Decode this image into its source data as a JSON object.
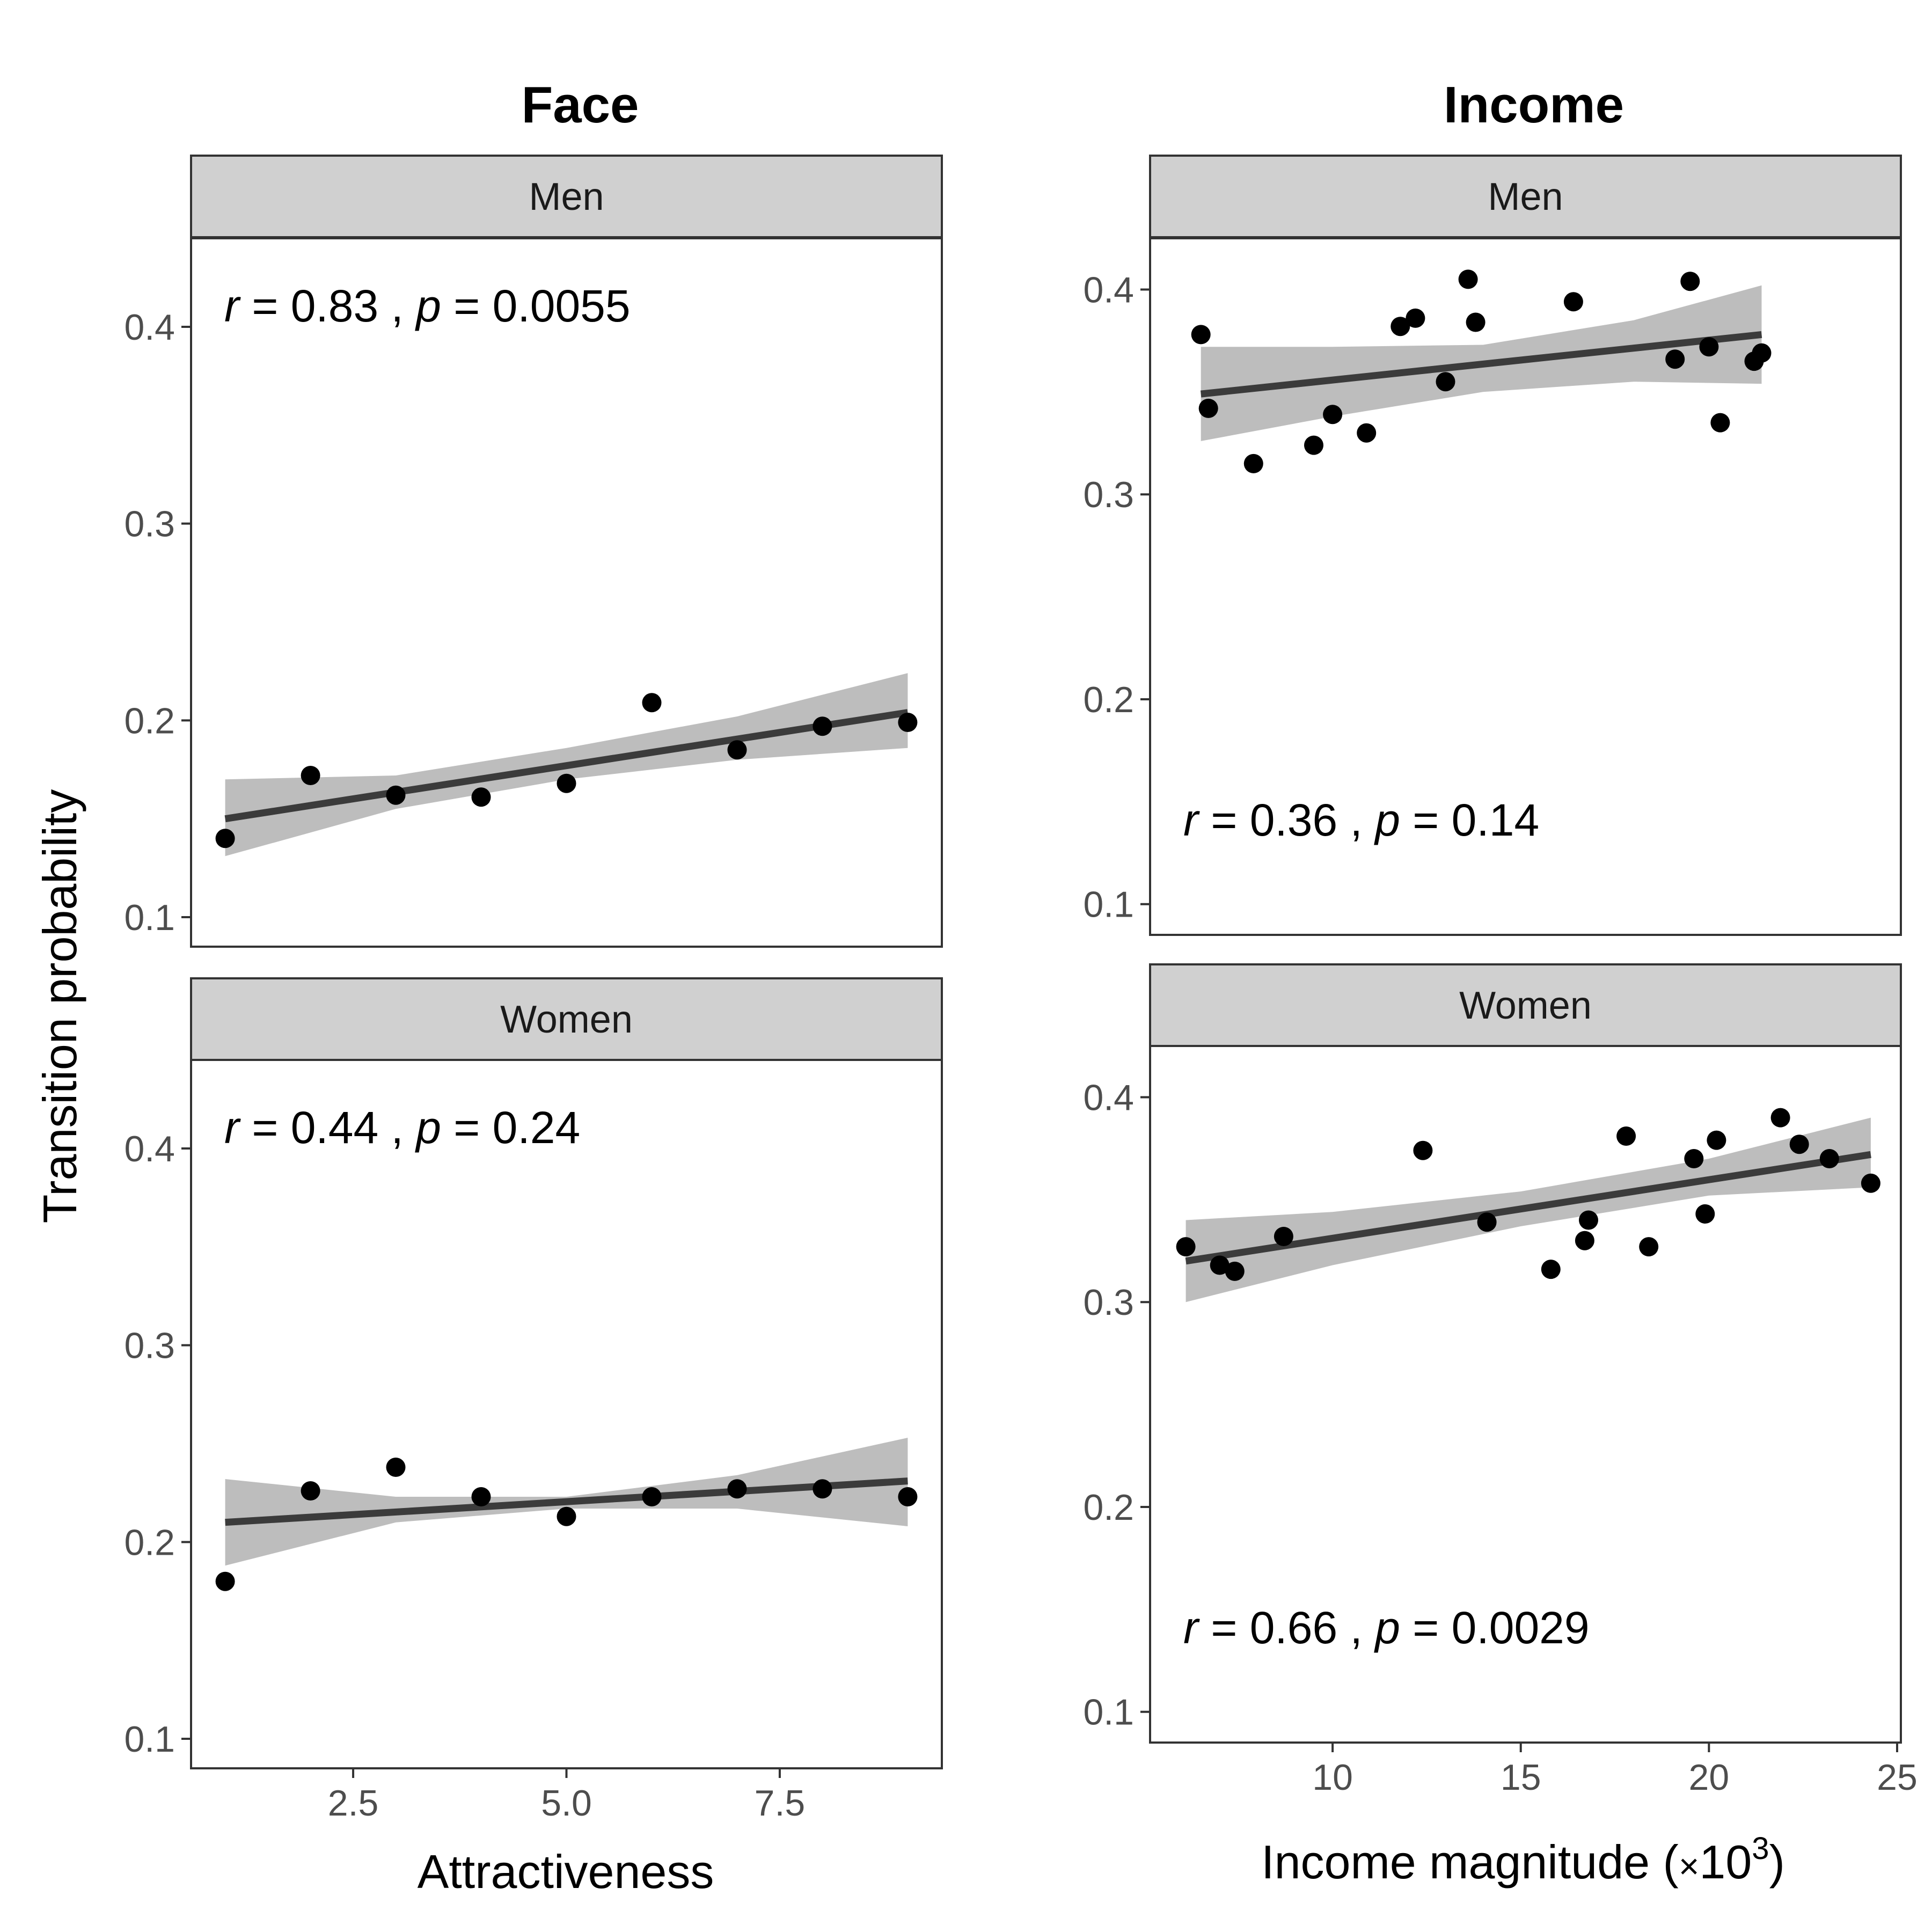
{
  "figure": {
    "ylabel": "Transition probability",
    "columns": [
      {
        "title": "Face",
        "xlabel": "Attractiveness"
      },
      {
        "title": "Income",
        "xlabel_main": "Income magnitude (",
        "xlabel_times": "×",
        "xlabel_base": "10",
        "xlabel_exp": "3",
        "xlabel_close": ")"
      }
    ]
  },
  "chart_data": [
    {
      "type": "scatter",
      "column": "Face",
      "strip": "Men",
      "stat": {
        "r_symbol": "r",
        "r_text": " = 0.83 , ",
        "p_symbol": "p",
        "p_text": " = 0.0055"
      },
      "stat_position": "top-left",
      "xlim": [
        0.6,
        9.4
      ],
      "ylim": [
        0.085,
        0.445
      ],
      "x_ticks": [
        2.5,
        5.0,
        7.5
      ],
      "x_tick_labels": [
        "2.5",
        "5.0",
        "7.5"
      ],
      "y_ticks": [
        0.1,
        0.2,
        0.3,
        0.4
      ],
      "y_tick_labels": [
        "0.1",
        "0.2",
        "0.3",
        "0.4"
      ],
      "show_x_axis": false,
      "points": [
        [
          1,
          0.14
        ],
        [
          2,
          0.172
        ],
        [
          3,
          0.162
        ],
        [
          4,
          0.161
        ],
        [
          5,
          0.168
        ],
        [
          6,
          0.209
        ],
        [
          7,
          0.185
        ],
        [
          8,
          0.197
        ],
        [
          9,
          0.199
        ]
      ],
      "fit": {
        "x": [
          1,
          9
        ],
        "y": [
          0.15,
          0.204
        ]
      },
      "band": {
        "x": [
          1,
          3,
          5,
          7,
          9
        ],
        "lower": [
          0.131,
          0.155,
          0.17,
          0.18,
          0.186
        ],
        "upper": [
          0.17,
          0.172,
          0.186,
          0.202,
          0.224
        ]
      }
    },
    {
      "type": "scatter",
      "column": "Face",
      "strip": "Women",
      "stat": {
        "r_symbol": "r",
        "r_text": " = 0.44 , ",
        "p_symbol": "p",
        "p_text": " = 0.24"
      },
      "stat_position": "top-left",
      "xlim": [
        0.6,
        9.4
      ],
      "ylim": [
        0.085,
        0.445
      ],
      "x_ticks": [
        2.5,
        5.0,
        7.5
      ],
      "x_tick_labels": [
        "2.5",
        "5.0",
        "7.5"
      ],
      "y_ticks": [
        0.1,
        0.2,
        0.3,
        0.4
      ],
      "y_tick_labels": [
        "0.1",
        "0.2",
        "0.3",
        "0.4"
      ],
      "show_x_axis": true,
      "points": [
        [
          1,
          0.18
        ],
        [
          2,
          0.226
        ],
        [
          3,
          0.238
        ],
        [
          4,
          0.223
        ],
        [
          5,
          0.213
        ],
        [
          6,
          0.223
        ],
        [
          7,
          0.227
        ],
        [
          8,
          0.227
        ],
        [
          9,
          0.223
        ]
      ],
      "fit": {
        "x": [
          1,
          9
        ],
        "y": [
          0.21,
          0.231
        ]
      },
      "band": {
        "x": [
          1,
          3,
          5,
          7,
          9
        ],
        "lower": [
          0.188,
          0.21,
          0.217,
          0.217,
          0.208
        ],
        "upper": [
          0.232,
          0.223,
          0.223,
          0.234,
          0.253
        ]
      }
    },
    {
      "type": "scatter",
      "column": "Income",
      "strip": "Men",
      "stat": {
        "r_symbol": "r",
        "r_text": " = 0.36 , ",
        "p_symbol": "p",
        "p_text": " = 0.14"
      },
      "stat_position": "bottom-left",
      "xlim": [
        5.15,
        25.1
      ],
      "ylim": [
        0.085,
        0.425
      ],
      "x_ticks": [
        10,
        15,
        20,
        25
      ],
      "x_tick_labels": [
        "10",
        "15",
        "20",
        "25"
      ],
      "y_ticks": [
        0.1,
        0.2,
        0.3,
        0.4
      ],
      "y_tick_labels": [
        "0.1",
        "0.2",
        "0.3",
        "0.4"
      ],
      "show_x_axis": false,
      "points": [
        [
          6.5,
          0.378
        ],
        [
          6.7,
          0.342
        ],
        [
          7.9,
          0.315
        ],
        [
          9.5,
          0.324
        ],
        [
          10.0,
          0.339
        ],
        [
          10.9,
          0.33
        ],
        [
          11.8,
          0.382
        ],
        [
          12.2,
          0.386
        ],
        [
          13.0,
          0.355
        ],
        [
          13.6,
          0.405
        ],
        [
          13.8,
          0.384
        ],
        [
          16.4,
          0.394
        ],
        [
          19.1,
          0.366
        ],
        [
          19.5,
          0.404
        ],
        [
          20.0,
          0.372
        ],
        [
          20.3,
          0.335
        ],
        [
          21.2,
          0.365
        ],
        [
          21.4,
          0.369
        ]
      ],
      "fit": {
        "x": [
          6.5,
          21.4
        ],
        "y": [
          0.349,
          0.378
        ]
      },
      "band": {
        "x": [
          6.5,
          10,
          14,
          18,
          21.4
        ],
        "lower": [
          0.326,
          0.338,
          0.35,
          0.355,
          0.354
        ],
        "upper": [
          0.372,
          0.372,
          0.373,
          0.385,
          0.402
        ]
      }
    },
    {
      "type": "scatter",
      "column": "Income",
      "strip": "Women",
      "stat": {
        "r_symbol": "r",
        "r_text": " = 0.66 , ",
        "p_symbol": "p",
        "p_text": " = 0.0029"
      },
      "stat_position": "bottom-left",
      "xlim": [
        5.15,
        25.1
      ],
      "ylim": [
        0.085,
        0.425
      ],
      "x_ticks": [
        10,
        15,
        20,
        25
      ],
      "x_tick_labels": [
        "10",
        "15",
        "20",
        "25"
      ],
      "y_ticks": [
        0.1,
        0.2,
        0.3,
        0.4
      ],
      "y_tick_labels": [
        "0.1",
        "0.2",
        "0.3",
        "0.4"
      ],
      "show_x_axis": true,
      "points": [
        [
          6.1,
          0.327
        ],
        [
          7.0,
          0.318
        ],
        [
          7.4,
          0.315
        ],
        [
          8.7,
          0.332
        ],
        [
          12.4,
          0.374
        ],
        [
          14.1,
          0.339
        ],
        [
          15.8,
          0.316
        ],
        [
          16.7,
          0.33
        ],
        [
          16.8,
          0.34
        ],
        [
          17.8,
          0.381
        ],
        [
          18.4,
          0.327
        ],
        [
          19.6,
          0.37
        ],
        [
          19.9,
          0.343
        ],
        [
          20.2,
          0.379
        ],
        [
          21.9,
          0.39
        ],
        [
          22.4,
          0.377
        ],
        [
          23.2,
          0.37
        ],
        [
          24.3,
          0.358
        ]
      ],
      "fit": {
        "x": [
          6.1,
          24.3
        ],
        "y": [
          0.32,
          0.372
        ]
      },
      "band": {
        "x": [
          6.1,
          10,
          15,
          20,
          24.3
        ],
        "lower": [
          0.3,
          0.318,
          0.337,
          0.352,
          0.356
        ],
        "upper": [
          0.34,
          0.344,
          0.354,
          0.37,
          0.39
        ]
      }
    }
  ]
}
